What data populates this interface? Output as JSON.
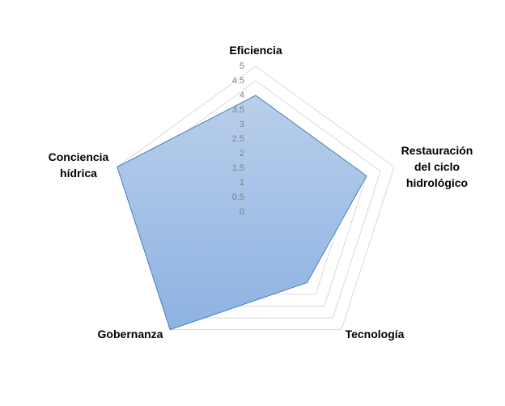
{
  "chart_data": {
    "type": "radar",
    "categories": [
      "Eficiencia",
      "Restauración del ciclo hidrológico",
      "Tecnología",
      "Gobernanza",
      "Conciencia hídrica"
    ],
    "series": [
      {
        "name": null,
        "color": "#4a7ebb",
        "values": [
          4,
          4,
          3,
          5,
          5
        ]
      }
    ],
    "ylim": [
      0,
      5
    ],
    "yticks": [
      0,
      0.5,
      1,
      1.5,
      2,
      2.5,
      3,
      3.5,
      4,
      4.5,
      5
    ],
    "grid": true
  }
}
